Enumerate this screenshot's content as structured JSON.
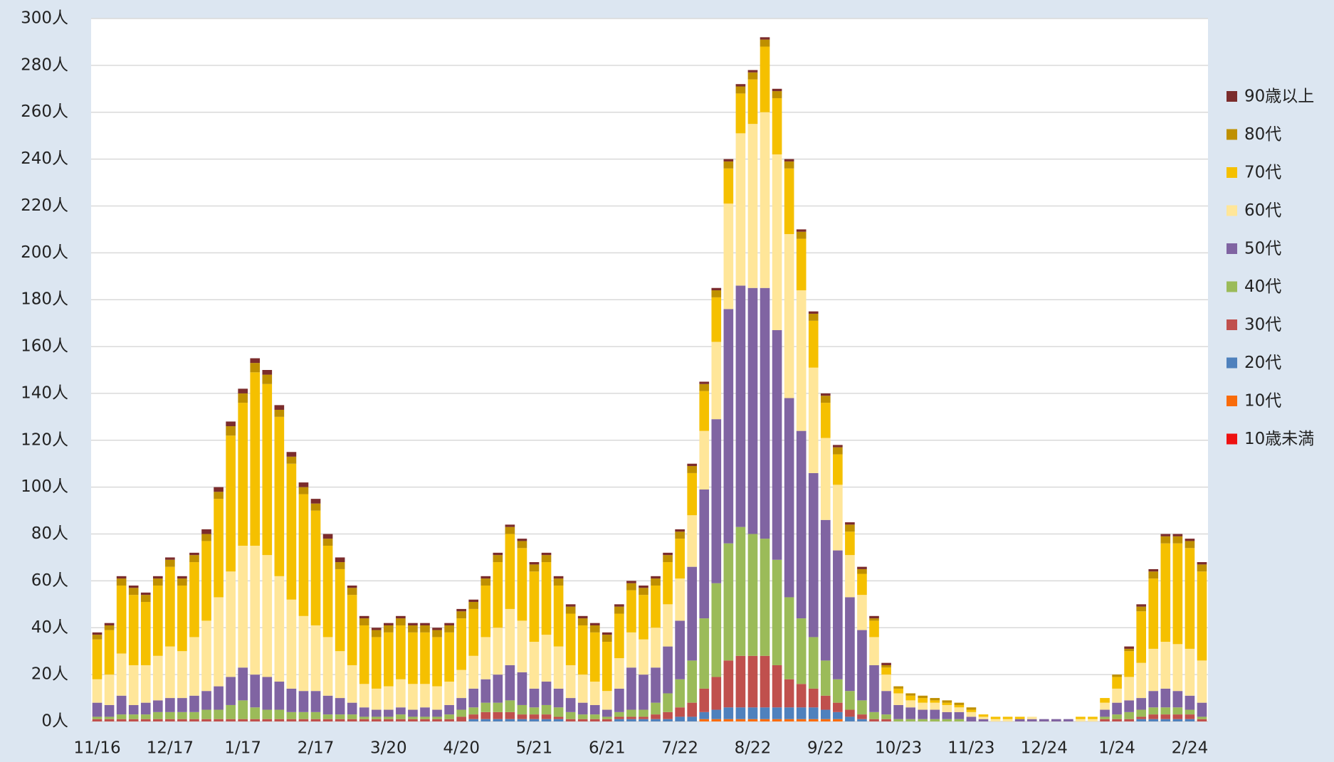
{
  "chart_data": {
    "type": "stacked_bar",
    "categories": [
      "11/16",
      null,
      null,
      null,
      null,
      null,
      "12/17",
      null,
      null,
      null,
      null,
      null,
      "1/17",
      null,
      null,
      null,
      null,
      null,
      "2/17",
      null,
      null,
      null,
      null,
      null,
      "3/20",
      null,
      null,
      null,
      null,
      null,
      "4/20",
      null,
      null,
      null,
      null,
      null,
      "5/21",
      null,
      null,
      null,
      null,
      null,
      "6/21",
      null,
      null,
      null,
      null,
      null,
      "7/22",
      null,
      null,
      null,
      null,
      null,
      "8/22",
      null,
      null,
      null,
      null,
      null,
      "9/22",
      null,
      null,
      null,
      null,
      null,
      "10/23",
      null,
      null,
      null,
      null,
      null,
      "11/23",
      null,
      null,
      null,
      null,
      null,
      "12/24",
      null,
      null,
      null,
      null,
      null,
      "1/24",
      null,
      null,
      null,
      null,
      null,
      "2/24",
      null
    ],
    "series": [
      {
        "name": "10歳未満",
        "color": "#ee1111",
        "values": [
          0,
          0,
          0,
          0,
          0,
          0,
          0,
          0,
          0,
          0,
          0,
          0,
          0,
          0,
          0,
          0,
          0,
          0,
          0,
          0,
          0,
          0,
          0,
          0,
          0,
          0,
          0,
          0,
          0,
          0,
          0,
          0,
          0,
          0,
          0,
          0,
          0,
          0,
          0,
          0,
          0,
          0,
          0,
          0,
          0,
          0,
          0,
          0,
          0,
          0,
          0,
          0,
          0,
          0,
          0,
          0,
          0,
          0,
          0,
          0,
          0,
          0,
          0,
          0,
          0,
          0,
          0,
          0,
          0,
          0,
          0,
          0,
          0,
          0,
          0,
          0,
          0,
          0,
          0,
          0,
          0,
          0,
          0,
          0,
          0,
          0,
          0,
          0,
          0,
          0,
          0,
          0
        ]
      },
      {
        "name": "10代",
        "color": "#f96b0a",
        "values": [
          0,
          0,
          0,
          0,
          0,
          0,
          0,
          0,
          0,
          0,
          0,
          0,
          0,
          0,
          0,
          0,
          0,
          0,
          0,
          0,
          0,
          0,
          0,
          0,
          0,
          0,
          0,
          0,
          0,
          0,
          0,
          0,
          0,
          0,
          0,
          0,
          0,
          0,
          0,
          0,
          0,
          0,
          0,
          0,
          0,
          0,
          0,
          0,
          0,
          0,
          1,
          1,
          1,
          1,
          1,
          1,
          1,
          1,
          1,
          1,
          1,
          1,
          0,
          0,
          0,
          0,
          0,
          0,
          0,
          0,
          0,
          0,
          0,
          0,
          0,
          0,
          0,
          0,
          0,
          0,
          0,
          0,
          0,
          0,
          0,
          0,
          0,
          0,
          0,
          0,
          0,
          0
        ]
      },
      {
        "name": "20代",
        "color": "#4f81bd",
        "values": [
          0,
          0,
          0,
          0,
          0,
          0,
          0,
          0,
          0,
          0,
          0,
          0,
          0,
          0,
          0,
          0,
          0,
          0,
          0,
          0,
          0,
          0,
          0,
          0,
          0,
          0,
          0,
          0,
          0,
          0,
          0,
          1,
          1,
          1,
          1,
          1,
          1,
          1,
          1,
          0,
          0,
          0,
          0,
          1,
          1,
          1,
          1,
          1,
          2,
          2,
          3,
          4,
          5,
          5,
          5,
          5,
          5,
          5,
          5,
          5,
          4,
          3,
          2,
          1,
          0,
          0,
          0,
          0,
          0,
          0,
          0,
          0,
          0,
          0,
          0,
          0,
          0,
          0,
          0,
          0,
          0,
          0,
          0,
          0,
          0,
          0,
          1,
          1,
          1,
          1,
          1,
          0
        ]
      },
      {
        "name": "30代",
        "color": "#c0504d",
        "values": [
          1,
          1,
          1,
          1,
          1,
          1,
          1,
          1,
          1,
          1,
          1,
          1,
          1,
          1,
          1,
          1,
          1,
          1,
          1,
          1,
          1,
          1,
          1,
          1,
          1,
          1,
          1,
          1,
          1,
          1,
          2,
          2,
          3,
          3,
          3,
          2,
          2,
          2,
          1,
          1,
          1,
          1,
          1,
          1,
          1,
          1,
          2,
          3,
          4,
          6,
          10,
          14,
          20,
          22,
          22,
          22,
          18,
          12,
          10,
          8,
          6,
          4,
          3,
          2,
          1,
          1,
          0,
          0,
          0,
          0,
          0,
          0,
          0,
          0,
          0,
          0,
          0,
          0,
          0,
          0,
          0,
          0,
          0,
          1,
          1,
          1,
          1,
          2,
          2,
          2,
          2,
          1
        ]
      },
      {
        "name": "40代",
        "color": "#9bbb59",
        "values": [
          1,
          1,
          2,
          2,
          2,
          3,
          3,
          3,
          3,
          4,
          4,
          6,
          8,
          5,
          4,
          4,
          3,
          3,
          3,
          2,
          2,
          2,
          1,
          1,
          1,
          2,
          1,
          1,
          1,
          2,
          3,
          3,
          4,
          4,
          5,
          4,
          3,
          4,
          4,
          3,
          2,
          2,
          1,
          2,
          3,
          3,
          5,
          8,
          12,
          18,
          30,
          40,
          50,
          55,
          52,
          50,
          45,
          35,
          28,
          22,
          15,
          10,
          8,
          6,
          3,
          2,
          1,
          1,
          1,
          1,
          1,
          1,
          0,
          0,
          0,
          0,
          0,
          0,
          0,
          0,
          0,
          0,
          0,
          1,
          2,
          3,
          3,
          3,
          3,
          3,
          2,
          1
        ]
      },
      {
        "name": "50代",
        "color": "#8064a2",
        "values": [
          6,
          5,
          8,
          4,
          5,
          5,
          6,
          6,
          7,
          8,
          10,
          12,
          14,
          14,
          14,
          12,
          10,
          9,
          9,
          8,
          7,
          5,
          4,
          3,
          3,
          3,
          3,
          4,
          3,
          4,
          5,
          8,
          10,
          12,
          15,
          14,
          8,
          10,
          8,
          6,
          5,
          4,
          3,
          10,
          18,
          15,
          15,
          20,
          25,
          40,
          55,
          70,
          100,
          103,
          105,
          107,
          98,
          85,
          80,
          70,
          60,
          55,
          40,
          30,
          20,
          10,
          6,
          5,
          4,
          4,
          3,
          3,
          2,
          1,
          0,
          0,
          1,
          1,
          1,
          1,
          1,
          0,
          0,
          3,
          5,
          5,
          5,
          7,
          8,
          7,
          6,
          6
        ]
      },
      {
        "name": "60代",
        "color": "#ffe699",
        "values": [
          10,
          13,
          18,
          17,
          16,
          19,
          22,
          20,
          25,
          30,
          38,
          45,
          52,
          55,
          52,
          45,
          38,
          32,
          28,
          25,
          20,
          16,
          10,
          9,
          10,
          12,
          11,
          10,
          10,
          10,
          12,
          14,
          18,
          20,
          24,
          22,
          20,
          20,
          18,
          14,
          12,
          10,
          8,
          13,
          15,
          15,
          17,
          18,
          18,
          22,
          25,
          33,
          45,
          65,
          70,
          75,
          75,
          70,
          60,
          45,
          35,
          28,
          18,
          15,
          12,
          7,
          5,
          3,
          3,
          3,
          3,
          2,
          2,
          1,
          1,
          1,
          0,
          1,
          0,
          0,
          0,
          1,
          1,
          3,
          6,
          10,
          15,
          18,
          20,
          20,
          20,
          18
        ]
      },
      {
        "name": "70代",
        "color": "#f5c000",
        "values": [
          17,
          19,
          29,
          30,
          27,
          30,
          34,
          28,
          32,
          34,
          42,
          58,
          61,
          74,
          73,
          68,
          58,
          52,
          49,
          39,
          35,
          30,
          25,
          22,
          23,
          23,
          22,
          22,
          21,
          21,
          22,
          20,
          22,
          28,
          32,
          31,
          30,
          31,
          26,
          22,
          21,
          21,
          21,
          19,
          18,
          19,
          18,
          18,
          17,
          18,
          17,
          19,
          15,
          17,
          19,
          28,
          24,
          28,
          22,
          20,
          15,
          13,
          10,
          9,
          7,
          3,
          2,
          2,
          2,
          1,
          1,
          1,
          1,
          1,
          1,
          1,
          1,
          0,
          0,
          0,
          0,
          1,
          1,
          2,
          5,
          11,
          22,
          30,
          42,
          43,
          43,
          38
        ]
      },
      {
        "name": "80代",
        "color": "#bf9000",
        "values": [
          2,
          2,
          3,
          3,
          3,
          3,
          3,
          3,
          3,
          3,
          3,
          4,
          4,
          4,
          4,
          3,
          3,
          3,
          3,
          3,
          3,
          3,
          3,
          3,
          3,
          3,
          3,
          3,
          3,
          3,
          3,
          3,
          3,
          3,
          3,
          3,
          3,
          3,
          3,
          3,
          3,
          3,
          3,
          3,
          3,
          3,
          3,
          3,
          3,
          3,
          3,
          3,
          3,
          3,
          3,
          3,
          3,
          3,
          3,
          3,
          3,
          3,
          3,
          2,
          1,
          1,
          1,
          1,
          1,
          1,
          1,
          1,
          1,
          0,
          0,
          0,
          0,
          0,
          0,
          0,
          0,
          0,
          0,
          0,
          1,
          1,
          2,
          3,
          3,
          3,
          3,
          3
        ]
      },
      {
        "name": "90歳以上",
        "color": "#7b2c2c",
        "values": [
          1,
          1,
          1,
          1,
          1,
          1,
          1,
          1,
          1,
          2,
          2,
          2,
          2,
          2,
          2,
          2,
          2,
          2,
          2,
          2,
          2,
          1,
          1,
          1,
          1,
          1,
          1,
          1,
          1,
          1,
          1,
          1,
          1,
          1,
          1,
          1,
          1,
          1,
          1,
          1,
          1,
          1,
          1,
          1,
          1,
          1,
          1,
          1,
          1,
          1,
          1,
          1,
          1,
          1,
          1,
          1,
          1,
          1,
          1,
          1,
          1,
          1,
          1,
          1,
          1,
          1,
          0,
          0,
          0,
          0,
          0,
          0,
          0,
          0,
          0,
          0,
          0,
          0,
          0,
          0,
          0,
          0,
          0,
          0,
          0,
          1,
          1,
          1,
          1,
          1,
          1,
          1
        ]
      }
    ],
    "ylim": [
      0,
      300
    ],
    "yticks": [
      {
        "value": 0,
        "label": "0人"
      },
      {
        "value": 20,
        "label": "20人"
      },
      {
        "value": 40,
        "label": "40人"
      },
      {
        "value": 60,
        "label": "60人"
      },
      {
        "value": 80,
        "label": "80人"
      },
      {
        "value": 100,
        "label": "100人"
      },
      {
        "value": 120,
        "label": "120人"
      },
      {
        "value": 140,
        "label": "140人"
      },
      {
        "value": 160,
        "label": "160人"
      },
      {
        "value": 180,
        "label": "180人"
      },
      {
        "value": 200,
        "label": "200人"
      },
      {
        "value": 220,
        "label": "220人"
      },
      {
        "value": 240,
        "label": "240人"
      },
      {
        "value": 260,
        "label": "260人"
      },
      {
        "value": 280,
        "label": "280人"
      },
      {
        "value": 300,
        "label": "300人"
      }
    ],
    "grid": true,
    "legend": "right"
  }
}
